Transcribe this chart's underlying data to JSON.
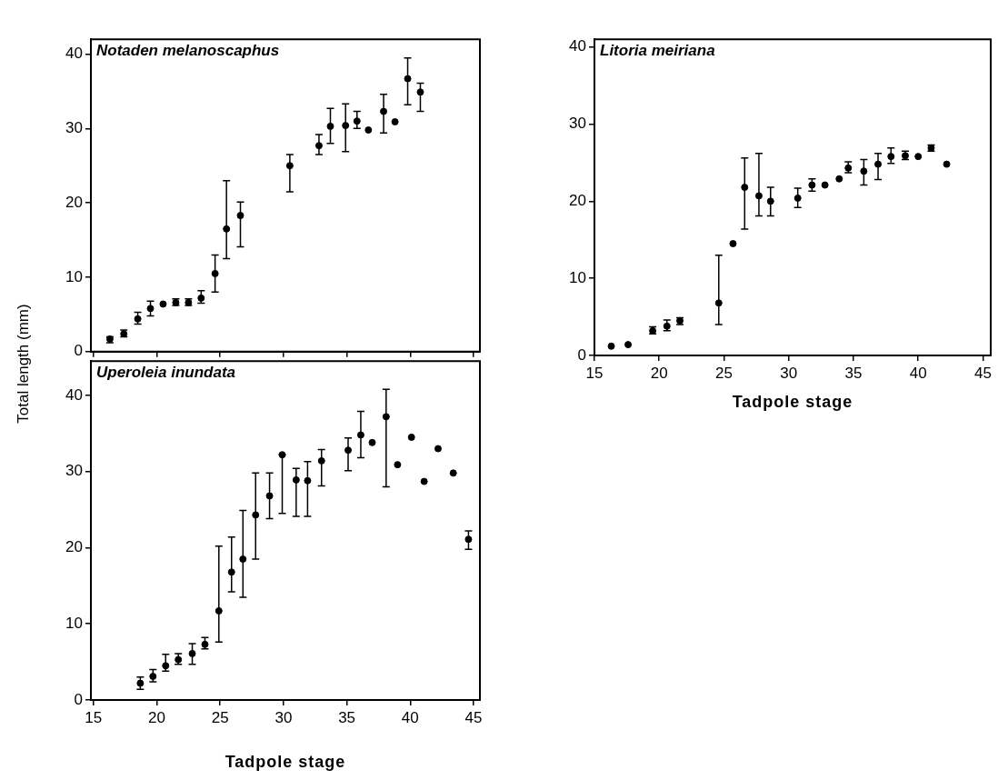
{
  "chart_data": [
    {
      "type": "scatter",
      "title": "Notaden melanoscaphus",
      "ylabel": "Total length (mm)",
      "color": "#000000",
      "marker": "circle",
      "tick_labels": "y",
      "xlim": [
        14.8,
        45.5
      ],
      "ylim": [
        0,
        42
      ],
      "xticks": [
        15,
        20,
        25,
        30,
        35,
        40,
        45
      ],
      "yticks": [
        0,
        10,
        20,
        30,
        40
      ],
      "x": [
        16.3,
        17.4,
        18.5,
        19.5,
        20.5,
        21.5,
        22.5,
        23.5,
        24.6,
        25.5,
        26.6,
        30.5,
        32.8,
        33.7,
        34.9,
        35.8,
        36.7,
        37.9,
        38.8,
        39.8,
        40.8
      ],
      "values": [
        1.7,
        2.4,
        4.4,
        5.8,
        6.4,
        6.6,
        6.6,
        7.2,
        10.5,
        16.5,
        18.3,
        25,
        27.7,
        30.3,
        30.4,
        31,
        29.8,
        32.3,
        30.9,
        36.7,
        34.9
      ],
      "errors": [
        [
          1.2,
          2.0
        ],
        [
          2.0,
          2.9
        ],
        [
          3.7,
          5.3
        ],
        [
          4.8,
          6.8
        ],
        null,
        [
          6.2,
          7.1
        ],
        [
          6.2,
          7.1
        ],
        [
          6.5,
          8.2
        ],
        [
          8,
          13
        ],
        [
          12.5,
          23
        ],
        [
          14.1,
          20.1
        ],
        [
          21.5,
          26.5
        ],
        [
          26.5,
          29.2
        ],
        [
          28,
          32.7
        ],
        [
          26.9,
          33.3
        ],
        [
          30,
          32.3
        ],
        null,
        [
          29.4,
          34.6
        ],
        null,
        [
          33.2,
          39.5
        ],
        [
          32.3,
          36.1
        ]
      ]
    },
    {
      "type": "scatter",
      "title": "Uperoleia inundata",
      "xlabel": "Tadpole stage",
      "color": "#000000",
      "marker": "circle",
      "xlim": [
        14.8,
        45.5
      ],
      "ylim": [
        0,
        44.5
      ],
      "xticks": [
        15,
        20,
        25,
        30,
        35,
        40,
        45
      ],
      "yticks": [
        0,
        10,
        20,
        30,
        40
      ],
      "x": [
        18.7,
        19.7,
        20.7,
        21.7,
        22.8,
        23.8,
        24.9,
        25.9,
        26.8,
        27.8,
        28.9,
        29.9,
        31.0,
        31.9,
        33.0,
        35.1,
        36.1,
        37.0,
        38.1,
        39.0,
        40.1,
        41.1,
        42.2,
        43.4,
        44.6
      ],
      "values": [
        2.2,
        3.1,
        4.5,
        5.3,
        6.1,
        7.3,
        11.7,
        16.8,
        18.5,
        24.3,
        26.8,
        32.2,
        28.9,
        28.8,
        31.4,
        32.8,
        34.8,
        33.8,
        37.2,
        30.9,
        34.5,
        28.7,
        33.0,
        29.8,
        21.1
      ],
      "errors": [
        [
          1.4,
          3.0
        ],
        [
          2.4,
          4.0
        ],
        [
          3.8,
          6.0
        ],
        [
          4.7,
          6.1
        ],
        [
          4.7,
          7.4
        ],
        [
          6.7,
          8.2
        ],
        [
          7.6,
          20.2
        ],
        [
          14.2,
          21.4
        ],
        [
          13.5,
          24.9
        ],
        [
          18.5,
          29.8
        ],
        [
          23.8,
          29.8
        ],
        [
          24.5,
          32.2
        ],
        [
          24.1,
          30.4
        ],
        [
          24.1,
          31.3
        ],
        [
          28.1,
          32.9
        ],
        [
          30.1,
          34.4
        ],
        [
          31.8,
          37.9
        ],
        null,
        [
          28.0,
          40.8
        ],
        null,
        null,
        null,
        null,
        null,
        [
          19.8,
          22.2
        ]
      ]
    },
    {
      "type": "scatter",
      "title": "Litoria meiriana",
      "xlabel": "Tadpole stage",
      "color": "#000000",
      "marker": "circle",
      "xlim": [
        15,
        45.6
      ],
      "ylim": [
        0,
        41
      ],
      "xticks": [
        15,
        20,
        25,
        30,
        35,
        40,
        45
      ],
      "yticks": [
        0,
        10,
        20,
        30,
        40
      ],
      "x": [
        16.3,
        17.6,
        19.5,
        20.6,
        21.6,
        24.6,
        25.7,
        26.6,
        27.7,
        28.6,
        30.7,
        31.8,
        32.8,
        33.9,
        34.6,
        35.8,
        36.9,
        37.9,
        39.0,
        40.0,
        41.0,
        42.2
      ],
      "values": [
        1.2,
        1.4,
        3.2,
        3.8,
        4.5,
        6.8,
        14.5,
        21.8,
        20.7,
        20.0,
        20.4,
        22.1,
        22.1,
        22.9,
        24.3,
        23.9,
        24.8,
        25.8,
        25.9,
        25.8,
        26.9,
        24.8
      ],
      "errors": [
        null,
        null,
        [
          2.8,
          3.7
        ],
        [
          3.2,
          4.6
        ],
        [
          4.0,
          4.9
        ],
        [
          4.0,
          13.0
        ],
        null,
        [
          16.4,
          25.6
        ],
        [
          18.1,
          26.2
        ],
        [
          18.1,
          21.8
        ],
        [
          19.2,
          21.7
        ],
        [
          21.3,
          22.9
        ],
        null,
        null,
        [
          23.7,
          25.1
        ],
        [
          22.1,
          25.4
        ],
        [
          22.8,
          26.2
        ],
        [
          24.9,
          26.9
        ],
        [
          25.4,
          26.5
        ],
        null,
        [
          26.5,
          27.3
        ],
        null
      ]
    }
  ]
}
